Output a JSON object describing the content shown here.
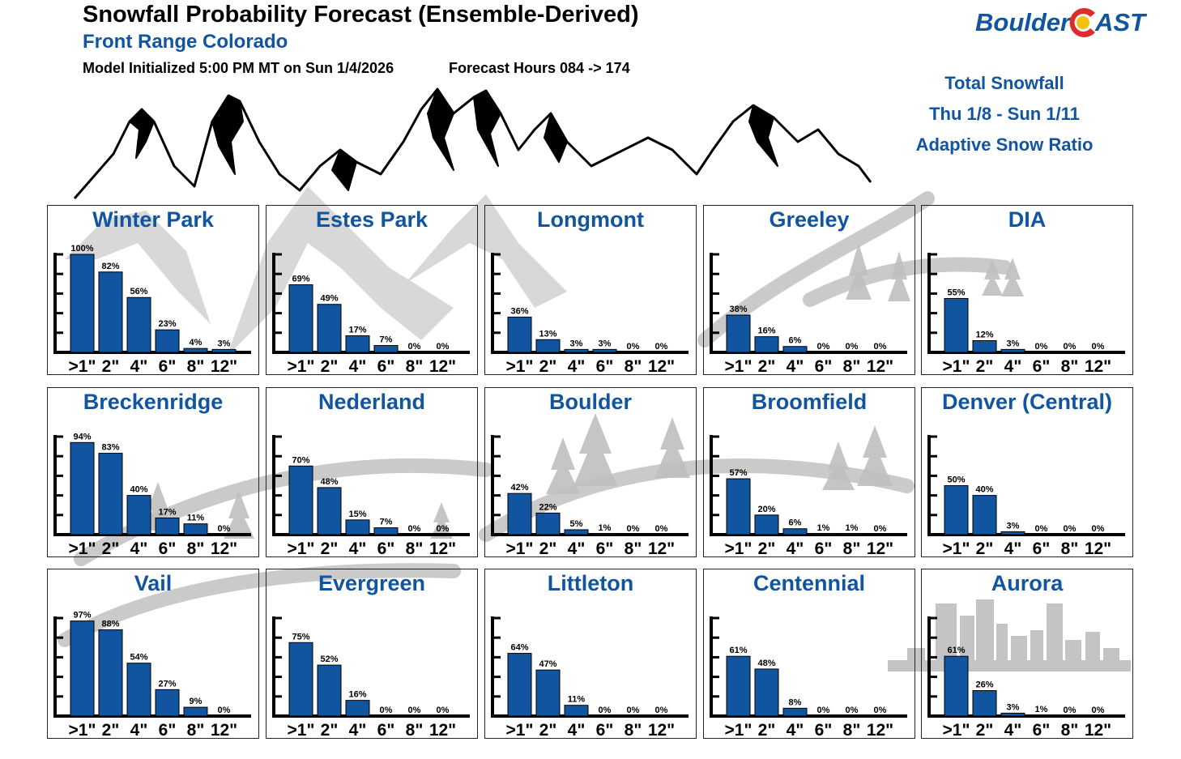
{
  "header": {
    "title": "Snowfall Probability Forecast (Ensemble-Derived)",
    "subtitle": "Front Range Colorado",
    "init": "Model Initialized 5:00 PM MT on Sun 1/4/2026",
    "hours": "Forecast Hours 084 -> 174"
  },
  "logo": {
    "part1": "Boulder",
    "part2": "AST"
  },
  "side_info": {
    "line1": "Total Snowfall",
    "line2": "Thu 1/8 - Sun 1/11",
    "line3": "Adaptive Snow Ratio"
  },
  "colors": {
    "bar": "#1155a0",
    "title": "#1155a0",
    "logo_red": "#e12a2a",
    "logo_gold": "#f3c10e"
  },
  "chart_data": {
    "type": "bar",
    "categories": [
      ">1\"",
      "2\"",
      "4\"",
      "6\"",
      "8\"",
      "12\""
    ],
    "ylim": [
      0,
      100
    ],
    "unit": "%",
    "series": [
      {
        "name": "Winter Park",
        "values": [
          100,
          82,
          56,
          23,
          4,
          3
        ]
      },
      {
        "name": "Estes Park",
        "values": [
          69,
          49,
          17,
          7,
          0,
          0
        ]
      },
      {
        "name": "Longmont",
        "values": [
          36,
          13,
          3,
          3,
          0,
          0
        ]
      },
      {
        "name": "Greeley",
        "values": [
          38,
          16,
          6,
          0,
          0,
          0
        ]
      },
      {
        "name": "DIA",
        "values": [
          55,
          12,
          3,
          0,
          0,
          0
        ]
      },
      {
        "name": "Breckenridge",
        "values": [
          94,
          83,
          40,
          17,
          11,
          0
        ]
      },
      {
        "name": "Nederland",
        "values": [
          70,
          48,
          15,
          7,
          0,
          0
        ]
      },
      {
        "name": "Boulder",
        "values": [
          42,
          22,
          5,
          1,
          0,
          0
        ]
      },
      {
        "name": "Broomfield",
        "values": [
          57,
          20,
          6,
          1,
          1,
          0
        ]
      },
      {
        "name": "Denver (Central)",
        "values": [
          50,
          40,
          3,
          0,
          0,
          0
        ]
      },
      {
        "name": "Vail",
        "values": [
          97,
          88,
          54,
          27,
          9,
          0
        ]
      },
      {
        "name": "Evergreen",
        "values": [
          75,
          52,
          16,
          0,
          0,
          0
        ]
      },
      {
        "name": "Littleton",
        "values": [
          64,
          47,
          11,
          0,
          0,
          0
        ]
      },
      {
        "name": "Centennial",
        "values": [
          61,
          48,
          8,
          0,
          0,
          0
        ]
      },
      {
        "name": "Aurora",
        "values": [
          61,
          26,
          3,
          1,
          0,
          0
        ]
      }
    ]
  }
}
